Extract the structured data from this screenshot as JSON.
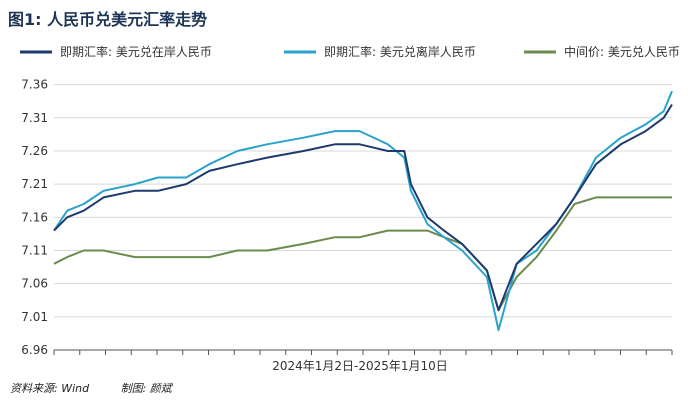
{
  "title": "图1: 人民币兑美元汇率走势",
  "source": "资料来源: Wind",
  "author": "制图: 颜斌",
  "colors": {
    "onshore": "#1e3a6e",
    "offshore": "#2aa3cc",
    "central": "#6b8a4e"
  },
  "chart_data": {
    "type": "line",
    "xlabel": "2024年1月2日-2025年1月10日",
    "ylim": [
      6.96,
      7.37
    ],
    "yticks": [
      "7.36",
      "7.31",
      "7.26",
      "7.21",
      "7.16",
      "7.11",
      "7.06",
      "7.01",
      "6.96"
    ],
    "x": [
      "2024-01-02",
      "2024-01-10",
      "2024-01-20",
      "2024-02-01",
      "2024-02-20",
      "2024-03-05",
      "2024-03-22",
      "2024-04-05",
      "2024-04-22",
      "2024-05-10",
      "2024-06-01",
      "2024-06-20",
      "2024-07-05",
      "2024-07-22",
      "2024-08-01",
      "2024-08-05",
      "2024-08-15",
      "2024-08-25",
      "2024-09-05",
      "2024-09-20",
      "2024-09-27",
      "2024-10-08",
      "2024-10-20",
      "2024-11-01",
      "2024-11-12",
      "2024-11-25",
      "2024-12-10",
      "2024-12-25",
      "2025-01-05",
      "2025-01-10"
    ],
    "series": [
      {
        "name": "即期汇率: 美元兑在岸人民币",
        "color": "#1e3a6e",
        "values": [
          7.14,
          7.16,
          7.17,
          7.19,
          7.2,
          7.2,
          7.21,
          7.23,
          7.24,
          7.25,
          7.26,
          7.27,
          7.27,
          7.26,
          7.26,
          7.21,
          7.16,
          7.14,
          7.12,
          7.08,
          7.02,
          7.09,
          7.12,
          7.15,
          7.19,
          7.24,
          7.27,
          7.29,
          7.31,
          7.33
        ]
      },
      {
        "name": "即期汇率: 美元兑离岸人民币",
        "color": "#2aa3cc",
        "values": [
          7.14,
          7.17,
          7.18,
          7.2,
          7.21,
          7.22,
          7.22,
          7.24,
          7.26,
          7.27,
          7.28,
          7.29,
          7.29,
          7.27,
          7.25,
          7.2,
          7.15,
          7.13,
          7.11,
          7.07,
          6.99,
          7.09,
          7.11,
          7.15,
          7.19,
          7.25,
          7.28,
          7.3,
          7.32,
          7.35
        ]
      },
      {
        "name": "中间价: 美元兑人民币",
        "color": "#6b8a4e",
        "values": [
          7.09,
          7.1,
          7.11,
          7.11,
          7.1,
          7.1,
          7.1,
          7.1,
          7.11,
          7.11,
          7.12,
          7.13,
          7.13,
          7.14,
          7.14,
          7.14,
          7.14,
          7.13,
          7.12,
          7.08,
          7.02,
          7.07,
          7.1,
          7.14,
          7.18,
          7.19,
          7.19,
          7.19,
          7.19,
          7.19
        ]
      }
    ]
  }
}
